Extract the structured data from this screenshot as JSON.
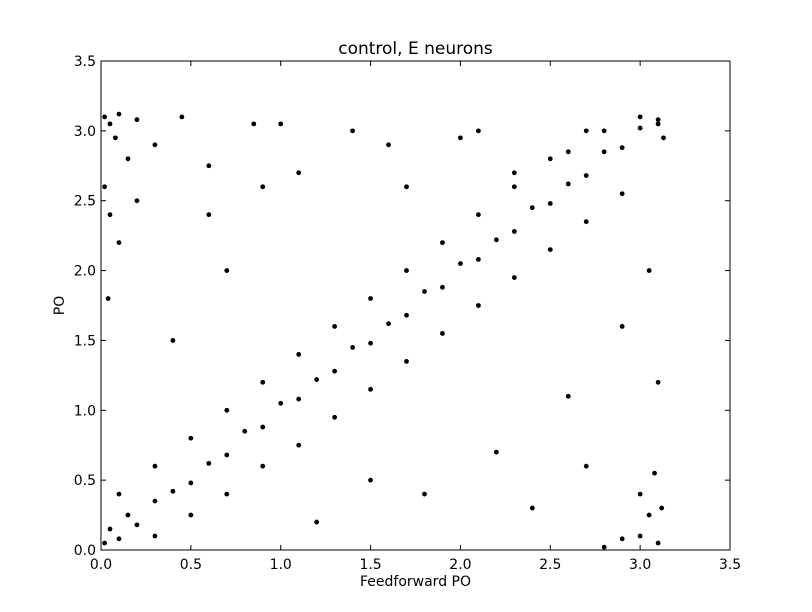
{
  "chart_data": {
    "type": "scatter",
    "title": "control, E neurons",
    "xlabel": "Feedforward PO",
    "ylabel": "PO",
    "xlim": [
      0.0,
      3.5
    ],
    "ylim": [
      0.0,
      3.5
    ],
    "x_ticks": [
      "0.0",
      "0.5",
      "1.0",
      "1.5",
      "2.0",
      "2.5",
      "3.0",
      "3.5"
    ],
    "y_ticks": [
      "0.0",
      "0.5",
      "1.0",
      "1.5",
      "2.0",
      "2.5",
      "3.0",
      "3.5"
    ],
    "grid": false,
    "marker_color": "#000000",
    "series": [
      {
        "values": [
          [
            0.02,
            3.1
          ],
          [
            0.05,
            3.05
          ],
          [
            0.08,
            2.95
          ],
          [
            0.1,
            3.12
          ],
          [
            0.15,
            2.8
          ],
          [
            0.2,
            3.08
          ],
          [
            0.3,
            2.9
          ],
          [
            0.45,
            3.1
          ],
          [
            0.6,
            2.75
          ],
          [
            0.85,
            3.05
          ],
          [
            1.1,
            2.7
          ],
          [
            1.4,
            3.0
          ],
          [
            1.7,
            2.6
          ],
          [
            2.0,
            2.95
          ],
          [
            2.3,
            2.7
          ],
          [
            2.6,
            2.85
          ],
          [
            2.8,
            3.0
          ],
          [
            3.0,
            3.1
          ],
          [
            3.1,
            3.05
          ],
          [
            3.13,
            2.95
          ],
          [
            0.02,
            0.05
          ],
          [
            0.05,
            0.15
          ],
          [
            0.1,
            0.08
          ],
          [
            0.15,
            0.25
          ],
          [
            0.2,
            0.18
          ],
          [
            0.3,
            0.35
          ],
          [
            0.4,
            0.42
          ],
          [
            0.5,
            0.48
          ],
          [
            0.6,
            0.62
          ],
          [
            0.7,
            0.68
          ],
          [
            0.8,
            0.85
          ],
          [
            0.9,
            0.88
          ],
          [
            1.0,
            1.05
          ],
          [
            1.1,
            1.08
          ],
          [
            1.2,
            1.22
          ],
          [
            1.3,
            1.28
          ],
          [
            1.4,
            1.45
          ],
          [
            1.5,
            1.48
          ],
          [
            1.6,
            1.62
          ],
          [
            1.7,
            1.68
          ],
          [
            1.8,
            1.85
          ],
          [
            1.9,
            1.88
          ],
          [
            2.0,
            2.05
          ],
          [
            2.1,
            2.08
          ],
          [
            2.2,
            2.22
          ],
          [
            2.3,
            2.28
          ],
          [
            2.4,
            2.45
          ],
          [
            2.5,
            2.48
          ],
          [
            2.6,
            2.62
          ],
          [
            2.7,
            2.68
          ],
          [
            2.8,
            2.85
          ],
          [
            2.9,
            2.88
          ],
          [
            3.0,
            3.02
          ],
          [
            3.1,
            3.08
          ],
          [
            0.3,
            0.1
          ],
          [
            0.5,
            0.25
          ],
          [
            0.7,
            0.4
          ],
          [
            0.9,
            0.6
          ],
          [
            1.1,
            0.75
          ],
          [
            1.3,
            0.95
          ],
          [
            1.5,
            1.15
          ],
          [
            1.7,
            1.35
          ],
          [
            1.9,
            1.55
          ],
          [
            2.1,
            1.75
          ],
          [
            2.3,
            1.95
          ],
          [
            2.5,
            2.15
          ],
          [
            2.7,
            2.35
          ],
          [
            2.9,
            2.55
          ],
          [
            0.1,
            0.4
          ],
          [
            0.3,
            0.6
          ],
          [
            0.5,
            0.8
          ],
          [
            0.7,
            1.0
          ],
          [
            0.9,
            1.2
          ],
          [
            1.1,
            1.4
          ],
          [
            1.3,
            1.6
          ],
          [
            1.5,
            1.8
          ],
          [
            1.7,
            2.0
          ],
          [
            1.9,
            2.2
          ],
          [
            2.1,
            2.4
          ],
          [
            2.3,
            2.6
          ],
          [
            2.5,
            2.8
          ],
          [
            2.7,
            3.0
          ],
          [
            3.0,
            0.1
          ],
          [
            3.05,
            0.25
          ],
          [
            3.1,
            0.05
          ],
          [
            3.12,
            0.3
          ],
          [
            2.9,
            0.08
          ],
          [
            3.0,
            0.4
          ],
          [
            3.08,
            0.55
          ],
          [
            2.8,
            0.02
          ],
          [
            0.02,
            2.6
          ],
          [
            0.05,
            2.4
          ],
          [
            0.1,
            2.2
          ],
          [
            0.04,
            1.8
          ],
          [
            0.2,
            2.5
          ],
          [
            1.2,
            0.2
          ],
          [
            1.8,
            0.4
          ],
          [
            2.2,
            0.7
          ],
          [
            2.6,
            1.1
          ],
          [
            2.9,
            1.6
          ],
          [
            3.05,
            2.0
          ],
          [
            0.4,
            1.5
          ],
          [
            0.7,
            2.0
          ],
          [
            0.9,
            2.6
          ],
          [
            1.6,
            2.9
          ],
          [
            2.1,
            3.0
          ],
          [
            3.1,
            1.2
          ],
          [
            2.7,
            0.6
          ],
          [
            1.5,
            0.5
          ],
          [
            0.6,
            2.4
          ],
          [
            1.0,
            3.05
          ],
          [
            2.4,
            0.3
          ]
        ]
      }
    ]
  }
}
